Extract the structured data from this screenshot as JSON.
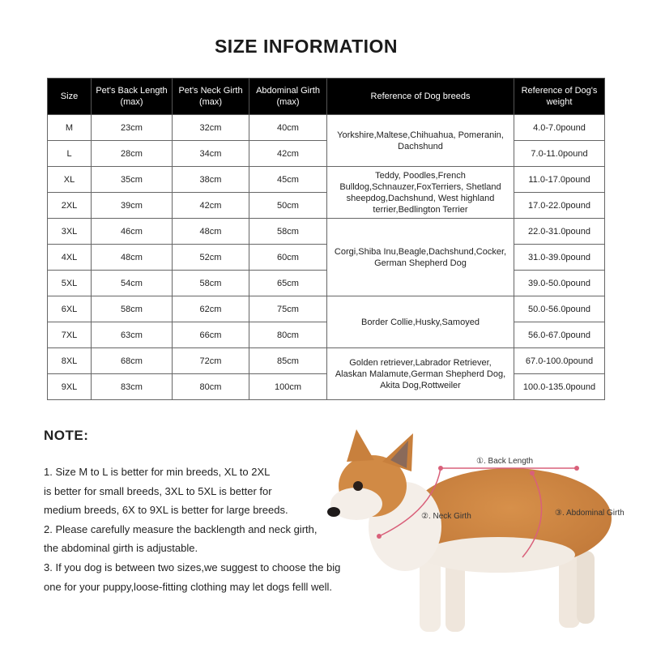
{
  "title": "SIZE INFORMATION",
  "table": {
    "headers": [
      "Size",
      "Pet's Back Length (max)",
      "Pet's Neck Girth (max)",
      "Abdominal Girth (max)",
      "Reference of  Dog breeds",
      "Reference of  Dog's weight"
    ],
    "rows": [
      {
        "size": "M",
        "back": "23cm",
        "neck": "32cm",
        "abdominal": "40cm",
        "weight": "4.0-7.0pound"
      },
      {
        "size": "L",
        "back": "28cm",
        "neck": "34cm",
        "abdominal": "42cm",
        "weight": "7.0-11.0pound"
      },
      {
        "size": "XL",
        "back": "35cm",
        "neck": "38cm",
        "abdominal": "45cm",
        "weight": "11.0-17.0pound"
      },
      {
        "size": "2XL",
        "back": "39cm",
        "neck": "42cm",
        "abdominal": "50cm",
        "weight": "17.0-22.0pound"
      },
      {
        "size": "3XL",
        "back": "46cm",
        "neck": "48cm",
        "abdominal": "58cm",
        "weight": "22.0-31.0pound"
      },
      {
        "size": "4XL",
        "back": "48cm",
        "neck": "52cm",
        "abdominal": "60cm",
        "weight": "31.0-39.0pound"
      },
      {
        "size": "5XL",
        "back": "54cm",
        "neck": "58cm",
        "abdominal": "65cm",
        "weight": "39.0-50.0pound"
      },
      {
        "size": "6XL",
        "back": "58cm",
        "neck": "62cm",
        "abdominal": "75cm",
        "weight": "50.0-56.0pound"
      },
      {
        "size": "7XL",
        "back": "63cm",
        "neck": "66cm",
        "abdominal": "80cm",
        "weight": "56.0-67.0pound"
      },
      {
        "size": "8XL",
        "back": "68cm",
        "neck": "72cm",
        "abdominal": "85cm",
        "weight": "67.0-100.0pound"
      },
      {
        "size": "9XL",
        "back": "83cm",
        "neck": "80cm",
        "abdominal": "100cm",
        "weight": "100.0-135.0pound"
      }
    ],
    "breed_groups": [
      {
        "rows": 2,
        "text": "Yorkshire,Maltese,Chihuahua, Pomeranin, Dachshund"
      },
      {
        "rows": 2,
        "text": "Teddy, Poodles,French Bulldog,Schnauzer,FoxTerriers, Shetland sheepdog,Dachshund, West highland terrier,Bedlington Terrier"
      },
      {
        "rows": 3,
        "text": "Corgi,Shiba Inu,Beagle,Dachshund,Cocker, German Shepherd Dog"
      },
      {
        "rows": 2,
        "text": "Border Collie,Husky,Samoyed"
      },
      {
        "rows": 2,
        "text": "Golden retriever,Labrador Retriever, Alaskan Malamute,German Shepherd Dog, Akita Dog,Rottweiler"
      }
    ]
  },
  "note": {
    "title": "NOTE:",
    "lines": [
      "1. Size M to L is better for min breeds, XL to 2XL",
      "is better for small breeds, 3XL to 5XL is better for",
      "medium breeds, 6X to 9XL is better for large breeds.",
      "2. Please carefully measure the backlength and neck girth,",
      "the abdominal girth is adjustable.",
      "3. If you dog is between two sizes,we suggest to choose the big",
      "one for your puppy,loose-fitting clothing may let dogs felll well."
    ]
  },
  "diagram": {
    "back_length": "①. Back Length",
    "neck_girth": "②. Neck Girth",
    "abdominal_girth": "③. Abdominal Girth",
    "line_color": "#d9607a"
  }
}
